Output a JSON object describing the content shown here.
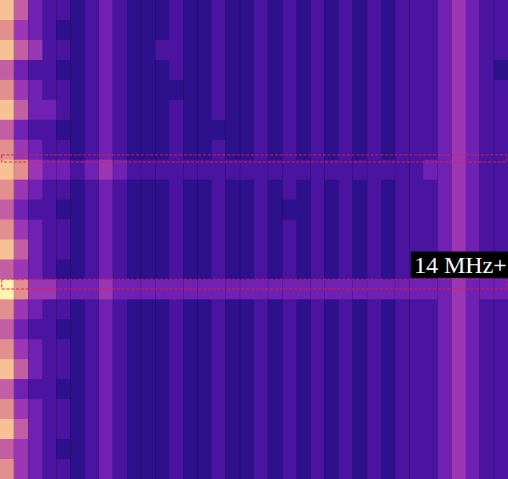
{
  "chart_data": {
    "type": "heatmap",
    "tick_labels": false,
    "zlim": [
      0,
      9
    ],
    "highlight_rows": [
      [
        7.76,
        8.12
      ],
      [
        14.0,
        14.48
      ]
    ],
    "annotations": [
      {
        "text": "14 MHz+",
        "y": 13.28
      }
    ],
    "cells": [
      [
        8,
        6,
        4,
        3,
        3,
        2,
        3,
        4,
        3,
        2,
        2,
        2,
        3,
        2,
        2,
        3,
        2,
        2,
        3,
        2,
        3,
        2,
        3,
        2,
        3,
        2,
        3,
        2,
        3,
        3,
        3,
        4,
        5,
        4,
        3,
        3
      ],
      [
        7,
        5,
        4,
        3,
        2,
        2,
        3,
        4,
        3,
        2,
        2,
        2,
        3,
        2,
        2,
        3,
        2,
        2,
        3,
        2,
        3,
        2,
        3,
        2,
        3,
        2,
        3,
        2,
        3,
        3,
        3,
        4,
        5,
        4,
        3,
        3
      ],
      [
        8,
        6,
        5,
        3,
        3,
        2,
        3,
        4,
        3,
        2,
        2,
        3,
        3,
        2,
        2,
        3,
        2,
        2,
        3,
        2,
        3,
        2,
        3,
        2,
        3,
        2,
        3,
        2,
        3,
        3,
        3,
        4,
        5,
        4,
        3,
        3
      ],
      [
        6,
        4,
        3,
        3,
        2,
        2,
        3,
        4,
        3,
        2,
        2,
        2,
        3,
        2,
        2,
        3,
        2,
        2,
        3,
        2,
        3,
        2,
        3,
        2,
        3,
        2,
        3,
        2,
        3,
        3,
        3,
        4,
        5,
        4,
        3,
        2
      ],
      [
        7,
        5,
        4,
        3,
        3,
        2,
        3,
        4,
        3,
        2,
        2,
        2,
        2,
        2,
        2,
        3,
        2,
        2,
        3,
        2,
        3,
        2,
        3,
        2,
        3,
        2,
        3,
        2,
        3,
        3,
        3,
        4,
        5,
        4,
        3,
        3
      ],
      [
        8,
        6,
        4,
        4,
        3,
        2,
        3,
        4,
        3,
        2,
        2,
        2,
        3,
        2,
        2,
        3,
        2,
        2,
        3,
        2,
        3,
        2,
        3,
        2,
        3,
        2,
        3,
        2,
        3,
        3,
        3,
        4,
        5,
        4,
        3,
        3
      ],
      [
        6,
        4,
        3,
        3,
        2,
        2,
        3,
        4,
        3,
        2,
        2,
        2,
        3,
        2,
        2,
        2,
        2,
        2,
        3,
        2,
        3,
        2,
        3,
        2,
        3,
        2,
        3,
        2,
        3,
        3,
        3,
        4,
        5,
        4,
        3,
        3
      ],
      [
        7,
        5,
        4,
        3,
        3,
        2,
        3,
        4,
        3,
        2,
        2,
        2,
        3,
        2,
        2,
        3,
        2,
        2,
        3,
        2,
        3,
        2,
        3,
        2,
        3,
        2,
        3,
        2,
        3,
        3,
        3,
        4,
        5,
        4,
        3,
        3
      ],
      [
        8,
        7,
        5,
        4,
        4,
        3,
        4,
        5,
        4,
        3,
        3,
        3,
        3,
        3,
        3,
        3,
        3,
        3,
        3,
        3,
        3,
        3,
        3,
        3,
        3,
        3,
        3,
        3,
        3,
        3,
        4,
        4,
        5,
        4,
        3,
        3
      ],
      [
        7,
        5,
        4,
        3,
        3,
        2,
        3,
        4,
        3,
        2,
        2,
        2,
        3,
        2,
        2,
        3,
        2,
        2,
        3,
        2,
        3,
        2,
        3,
        2,
        3,
        2,
        3,
        2,
        3,
        3,
        3,
        4,
        5,
        4,
        3,
        3
      ],
      [
        6,
        4,
        3,
        3,
        2,
        2,
        3,
        4,
        3,
        2,
        2,
        2,
        3,
        2,
        2,
        3,
        2,
        2,
        3,
        2,
        2,
        2,
        3,
        2,
        3,
        2,
        3,
        2,
        3,
        3,
        3,
        4,
        5,
        4,
        3,
        3
      ],
      [
        7,
        5,
        4,
        3,
        3,
        2,
        3,
        4,
        3,
        2,
        2,
        2,
        3,
        2,
        2,
        3,
        2,
        2,
        3,
        2,
        3,
        2,
        3,
        2,
        3,
        2,
        3,
        2,
        3,
        3,
        3,
        4,
        5,
        4,
        3,
        3
      ],
      [
        8,
        6,
        4,
        3,
        3,
        2,
        3,
        4,
        3,
        2,
        2,
        2,
        3,
        2,
        2,
        3,
        2,
        2,
        3,
        2,
        3,
        2,
        3,
        2,
        3,
        2,
        3,
        2,
        3,
        3,
        3,
        4,
        5,
        4,
        3,
        3
      ],
      [
        6,
        5,
        4,
        3,
        2,
        2,
        3,
        4,
        3,
        2,
        2,
        2,
        3,
        2,
        2,
        3,
        2,
        2,
        3,
        2,
        3,
        2,
        3,
        2,
        3,
        2,
        3,
        2,
        3,
        3,
        3,
        4,
        5,
        4,
        3,
        3
      ],
      [
        9,
        7,
        5,
        5,
        4,
        4,
        4,
        5,
        4,
        4,
        4,
        4,
        4,
        4,
        4,
        4,
        4,
        4,
        4,
        4,
        4,
        4,
        4,
        4,
        4,
        4,
        4,
        4,
        4,
        4,
        4,
        4,
        5,
        4,
        4,
        4
      ],
      [
        7,
        5,
        4,
        3,
        3,
        2,
        3,
        4,
        3,
        2,
        2,
        2,
        3,
        2,
        2,
        3,
        2,
        2,
        3,
        2,
        3,
        2,
        3,
        2,
        3,
        2,
        3,
        2,
        3,
        3,
        3,
        4,
        5,
        4,
        3,
        3
      ],
      [
        6,
        4,
        3,
        3,
        2,
        2,
        3,
        4,
        3,
        2,
        2,
        2,
        3,
        2,
        2,
        3,
        2,
        2,
        3,
        2,
        3,
        2,
        3,
        2,
        3,
        2,
        3,
        2,
        3,
        3,
        3,
        4,
        5,
        4,
        3,
        3
      ],
      [
        7,
        5,
        4,
        3,
        3,
        2,
        3,
        4,
        3,
        2,
        2,
        2,
        3,
        2,
        2,
        3,
        2,
        2,
        3,
        2,
        3,
        2,
        3,
        2,
        3,
        2,
        3,
        2,
        3,
        3,
        3,
        4,
        5,
        4,
        3,
        3
      ],
      [
        8,
        6,
        4,
        3,
        3,
        2,
        3,
        4,
        3,
        2,
        2,
        2,
        3,
        2,
        2,
        3,
        2,
        2,
        3,
        2,
        3,
        2,
        3,
        2,
        3,
        2,
        3,
        2,
        3,
        3,
        3,
        4,
        5,
        4,
        3,
        3
      ],
      [
        6,
        4,
        3,
        3,
        2,
        2,
        3,
        4,
        3,
        2,
        2,
        2,
        3,
        2,
        2,
        3,
        2,
        2,
        3,
        2,
        3,
        2,
        3,
        2,
        3,
        2,
        3,
        2,
        3,
        3,
        3,
        4,
        5,
        4,
        3,
        3
      ],
      [
        7,
        5,
        4,
        3,
        3,
        2,
        3,
        4,
        3,
        2,
        2,
        2,
        3,
        2,
        2,
        3,
        2,
        2,
        3,
        2,
        3,
        2,
        3,
        2,
        3,
        2,
        3,
        2,
        3,
        3,
        3,
        4,
        5,
        4,
        3,
        3
      ],
      [
        8,
        6,
        4,
        3,
        3,
        2,
        3,
        4,
        3,
        2,
        2,
        2,
        3,
        2,
        2,
        3,
        2,
        2,
        3,
        2,
        3,
        2,
        3,
        2,
        3,
        2,
        3,
        2,
        3,
        3,
        3,
        4,
        5,
        4,
        3,
        3
      ],
      [
        6,
        5,
        4,
        3,
        2,
        2,
        3,
        4,
        3,
        2,
        2,
        2,
        3,
        2,
        2,
        3,
        2,
        2,
        3,
        2,
        3,
        2,
        3,
        2,
        3,
        2,
        3,
        2,
        3,
        3,
        3,
        4,
        5,
        4,
        3,
        3
      ],
      [
        7,
        5,
        4,
        3,
        3,
        2,
        3,
        4,
        3,
        2,
        2,
        2,
        3,
        2,
        2,
        3,
        2,
        2,
        3,
        2,
        3,
        2,
        3,
        2,
        3,
        2,
        3,
        2,
        3,
        3,
        3,
        4,
        5,
        4,
        3,
        3
      ]
    ]
  }
}
